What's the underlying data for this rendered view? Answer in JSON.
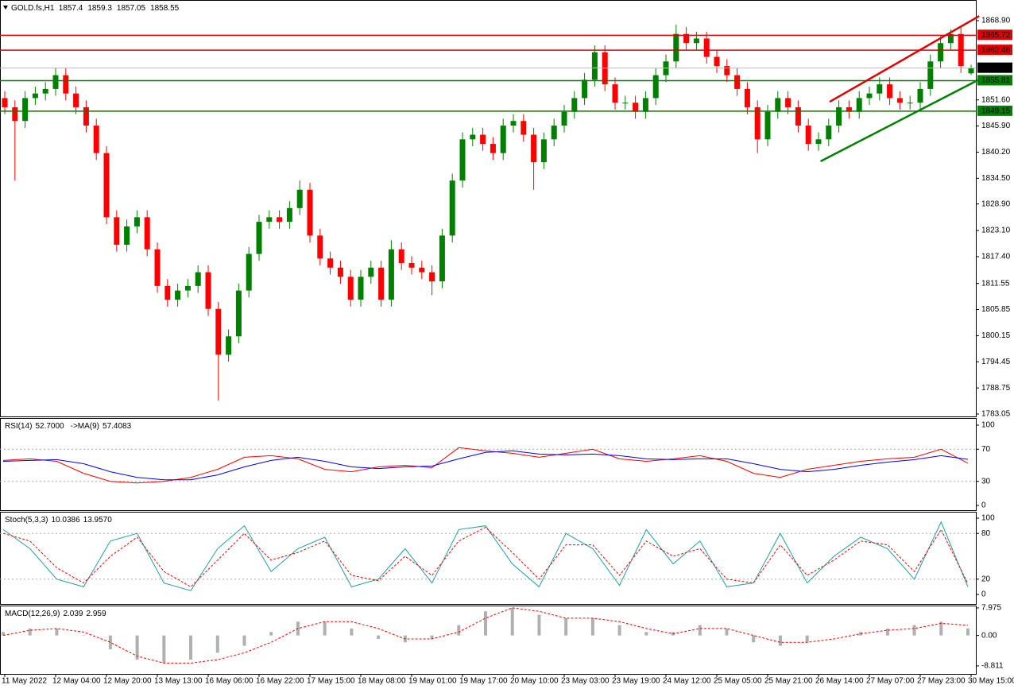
{
  "chart_data": [
    {
      "type": "candlestick",
      "title": "GOLD.fs,H1",
      "categories": [
        "11 May 2022",
        null,
        null,
        null,
        null,
        "12 May 04:00",
        null,
        null,
        null,
        null,
        "12 May 20:00",
        null,
        null,
        null,
        null,
        "13 May 13:00",
        null,
        null,
        null,
        null,
        "16 May 06:00",
        null,
        null,
        null,
        null,
        "16 May 22:00",
        null,
        null,
        null,
        null,
        "17 May 15:00",
        null,
        null,
        null,
        null,
        "18 May 08:00",
        null,
        null,
        null,
        null,
        "19 May 01:00",
        null,
        null,
        null,
        null,
        "19 May 17:00",
        null,
        null,
        null,
        null,
        "20 May 10:00",
        null,
        null,
        null,
        null,
        "23 May 03:00",
        null,
        null,
        null,
        null,
        "23 May 19:00",
        null,
        null,
        null,
        null,
        "24 May 12:00",
        null,
        null,
        null,
        null,
        "25 May 05:00",
        null,
        null,
        null,
        null,
        "25 May 21:00",
        null,
        null,
        null,
        null,
        "26 May 14:00",
        null,
        null,
        null,
        null,
        "27 May 07:00",
        null,
        null,
        null,
        null,
        "27 May 23:00",
        null,
        null,
        null,
        null,
        "30 May 15:00"
      ],
      "open": [
        1852,
        1850,
        1847,
        1852,
        1853,
        1854,
        1857,
        1853,
        1850,
        1846,
        1840,
        1826,
        1820,
        1824,
        1826,
        1819,
        1811,
        1808,
        1810,
        1811,
        1814,
        1806,
        1796,
        1800,
        1810,
        1818,
        1825,
        1826,
        1825,
        1828,
        1832,
        1822,
        1817,
        1815,
        1813,
        1808,
        1813,
        1815,
        1808,
        1819,
        1816,
        1815,
        1814,
        1812,
        1822,
        1834,
        1843,
        1844,
        1842,
        1840,
        1846,
        1847,
        1844,
        1838,
        1843,
        1846,
        1849,
        1852,
        1856,
        1862,
        1855,
        1851,
        1851,
        1849,
        1852,
        1857,
        1860,
        1866,
        1864,
        1865,
        1861,
        1859,
        1857,
        1854,
        1850,
        1843,
        1849,
        1852,
        1850,
        1846,
        1842,
        1843,
        1846,
        1850,
        1849,
        1852,
        1853,
        1855,
        1852,
        1851,
        1851,
        1854,
        1860,
        1864,
        1866,
        1857.4
      ],
      "high": [
        1853.5,
        1851.5,
        1853.5,
        1854.5,
        1855.5,
        1858.5,
        1858.5,
        1854.5,
        1851.5,
        1847.5,
        1841.5,
        1827.5,
        1825.5,
        1827.5,
        1827.5,
        1820.5,
        1812.5,
        1811.5,
        1812.5,
        1815.5,
        1815.5,
        1807.5,
        1801.5,
        1811.5,
        1819.5,
        1826.5,
        1827.5,
        1827.5,
        1829.5,
        1834,
        1833.5,
        1823.5,
        1818.5,
        1816.5,
        1814.5,
        1814.5,
        1816.5,
        1816.5,
        1821,
        1820.5,
        1817.5,
        1816.5,
        1815.5,
        1823.5,
        1835.5,
        1844.5,
        1845.5,
        1845.5,
        1843.5,
        1847.5,
        1848.5,
        1848.5,
        1845.5,
        1844.5,
        1847.5,
        1850.5,
        1853.5,
        1857.5,
        1863.5,
        1863.5,
        1856.5,
        1852.5,
        1852.5,
        1853.5,
        1858.5,
        1861.5,
        1868,
        1867.5,
        1866.5,
        1866.5,
        1862.5,
        1860.5,
        1858.5,
        1855.5,
        1851.5,
        1850.5,
        1853.5,
        1853.5,
        1851.5,
        1847.5,
        1844.5,
        1847.5,
        1851.5,
        1851.5,
        1853.5,
        1854.5,
        1856.5,
        1856.5,
        1853.5,
        1852.5,
        1855.5,
        1861.5,
        1865.5,
        1867,
        1867.5,
        1859.3
      ],
      "low": [
        1848.5,
        1834,
        1845.5,
        1850.5,
        1851.5,
        1852.5,
        1851.5,
        1848.5,
        1844.5,
        1838.5,
        1824.5,
        1818.5,
        1818.5,
        1822.5,
        1817.5,
        1809.5,
        1806.5,
        1806.5,
        1808.5,
        1809.5,
        1804.5,
        1786,
        1794.5,
        1798.5,
        1808.5,
        1816.5,
        1823.5,
        1823.5,
        1823.5,
        1826.5,
        1820.5,
        1815.5,
        1813.5,
        1811.5,
        1806.5,
        1806.5,
        1811.5,
        1806.5,
        1806.5,
        1814.5,
        1813.5,
        1812.5,
        1809,
        1810.5,
        1820.5,
        1832.5,
        1841.5,
        1840.5,
        1838.5,
        1838.5,
        1844.5,
        1842.5,
        1832,
        1836.5,
        1841.5,
        1844.5,
        1847.5,
        1850.5,
        1854.5,
        1853.5,
        1849.5,
        1849.5,
        1847.5,
        1847.5,
        1850.5,
        1855.5,
        1858.5,
        1862.5,
        1862.5,
        1859.5,
        1857.5,
        1855.5,
        1852.5,
        1848.5,
        1840,
        1841.5,
        1847.5,
        1848.5,
        1844.5,
        1840.5,
        1840.5,
        1841.5,
        1844.5,
        1847.5,
        1847.5,
        1850.5,
        1851.5,
        1850.5,
        1849.5,
        1849.5,
        1849.5,
        1852.5,
        1858.5,
        1862.5,
        1857.5,
        1857.05
      ],
      "close": [
        1850,
        1847,
        1852,
        1853,
        1854,
        1857,
        1853,
        1850,
        1846,
        1840,
        1826,
        1820,
        1824,
        1826,
        1819,
        1811,
        1808,
        1810,
        1811,
        1814,
        1806,
        1796,
        1800,
        1810,
        1818,
        1825,
        1826,
        1825,
        1828,
        1832,
        1822,
        1817,
        1815,
        1813,
        1808,
        1813,
        1815,
        1808,
        1819,
        1816,
        1815,
        1814,
        1812,
        1822,
        1834,
        1843,
        1844,
        1842,
        1840,
        1846,
        1847,
        1844,
        1838,
        1843,
        1846,
        1849,
        1852,
        1856,
        1862,
        1855,
        1851,
        1851,
        1849,
        1852,
        1857,
        1860,
        1866,
        1864,
        1865,
        1861,
        1859,
        1857,
        1854,
        1850,
        1843,
        1849,
        1852,
        1850,
        1846,
        1842,
        1843,
        1846,
        1850,
        1849,
        1852,
        1853,
        1855,
        1852,
        1851,
        1851,
        1854,
        1860,
        1864,
        1866,
        1859,
        1858.55
      ],
      "up_color": "#008000",
      "down_color": "#ff0000",
      "ylim": [
        1782.53,
        1873.06
      ],
      "yticks": [
        {
          "value": 1868.9,
          "label": "1868.90"
        },
        {
          "value": 1851.6,
          "label": "1851.60"
        },
        {
          "value": 1845.9,
          "label": "1845.90"
        },
        {
          "value": 1840.2,
          "label": "1840.20"
        },
        {
          "value": 1834.5,
          "label": "1834.50"
        },
        {
          "value": 1828.9,
          "label": "1828.90"
        },
        {
          "value": 1823.1,
          "label": "1823.10"
        },
        {
          "value": 1817.4,
          "label": "1817.40"
        },
        1811.55,
        1805.85,
        1800.15,
        1794.45,
        1788.75,
        1783.05
      ],
      "levels": [
        {
          "value": 1865.72,
          "color": "#e00000"
        },
        {
          "value": 1862.46,
          "color": "#e00000"
        },
        {
          "value": 1855.81,
          "color": "#008000"
        },
        {
          "value": 1849.15,
          "color": "#008000"
        }
      ],
      "trendlines": [
        {
          "color": "#e00000",
          "x": [
            81.1,
            95.8
          ],
          "y": [
            1851.2,
            1869.9
          ]
        },
        {
          "color": "#008000",
          "x": [
            80.2,
            95.8
          ],
          "y": [
            1838.2,
            1856.07
          ]
        }
      ]
    },
    {
      "type": "line",
      "ylim": [
        -5.9,
        107.9
      ],
      "yticks": [
        100,
        70,
        30,
        0
      ],
      "grid": true,
      "series": [
        {
          "name": "RSI(14)",
          "readout": "52.7000",
          "color": "#ff0000",
          "style": "line",
          "values": [
            56,
            58,
            55,
            40,
            30,
            28,
            30,
            35,
            45,
            60,
            62,
            58,
            45,
            42,
            48,
            50,
            47,
            72,
            68,
            65,
            60,
            65,
            70,
            58,
            55,
            58,
            62,
            55,
            40,
            35,
            45,
            50,
            55,
            58,
            60,
            70,
            52.7
          ]
        },
        {
          "name": "->MA(9)",
          "readout": "57.4083",
          "color": "#0000ff",
          "style": "line",
          "values": [
            55,
            56,
            57,
            52,
            42,
            35,
            32,
            32,
            38,
            48,
            56,
            60,
            55,
            48,
            46,
            48,
            49,
            58,
            66,
            68,
            64,
            63,
            64,
            62,
            58,
            57,
            58,
            58,
            52,
            45,
            42,
            45,
            50,
            54,
            57,
            62,
            57.4083
          ]
        }
      ]
    },
    {
      "type": "line",
      "ylim": [
        -12.5,
        107.3
      ],
      "yticks": [
        100,
        80,
        20,
        0
      ],
      "grid": true,
      "series": [
        {
          "name": "Stoch(5,3,3)",
          "readout": "10.0386",
          "color": "#20a0a0",
          "style": "line",
          "values": [
            85,
            60,
            20,
            10,
            70,
            80,
            15,
            5,
            60,
            90,
            30,
            60,
            75,
            10,
            20,
            60,
            15,
            85,
            90,
            40,
            10,
            80,
            60,
            12,
            85,
            40,
            70,
            10,
            15,
            80,
            15,
            50,
            75,
            60,
            20,
            95,
            10.0386
          ]
        },
        {
          "readout": "13.9570",
          "color": "#ff0000",
          "style": "dashed",
          "values": [
            80,
            70,
            35,
            15,
            50,
            75,
            30,
            10,
            45,
            80,
            45,
            55,
            70,
            25,
            18,
            50,
            25,
            70,
            88,
            55,
            20,
            65,
            65,
            25,
            70,
            50,
            60,
            20,
            15,
            65,
            25,
            45,
            70,
            65,
            30,
            85,
            13.957
          ]
        }
      ]
    },
    {
      "type": "line",
      "ylim": [
        -10.9,
        8.43
      ],
      "yticks": [
        7.975,
        {
          "value": 0,
          "label": "0.00"
        },
        -8.811
      ],
      "grid": false,
      "series": [
        {
          "name": "MACD(12,26,9)",
          "readout": "2.039",
          "color": "#b0b0b0",
          "style": "bar",
          "values": [
            1,
            2,
            2,
            0,
            -4,
            -7,
            -8,
            -7,
            -5,
            -3,
            1,
            4,
            4,
            2,
            -1,
            -2,
            -1,
            3,
            7,
            8,
            6,
            5,
            5,
            3,
            1,
            1,
            3,
            2,
            -2,
            -3,
            -2,
            0,
            1,
            2,
            3,
            4,
            2.039
          ]
        },
        {
          "readout": "2.959",
          "color": "#ff0000",
          "style": "dashed",
          "values": [
            0,
            1.5,
            2,
            1,
            -2,
            -6,
            -8,
            -8,
            -7,
            -5,
            -2,
            2,
            4,
            4,
            2,
            -1,
            -1,
            1,
            5,
            8,
            7,
            5,
            5,
            4,
            2,
            0.5,
            2,
            2,
            0,
            -2,
            -2,
            -1,
            0.5,
            1.5,
            2,
            3.5,
            2.959
          ]
        }
      ]
    }
  ]
}
